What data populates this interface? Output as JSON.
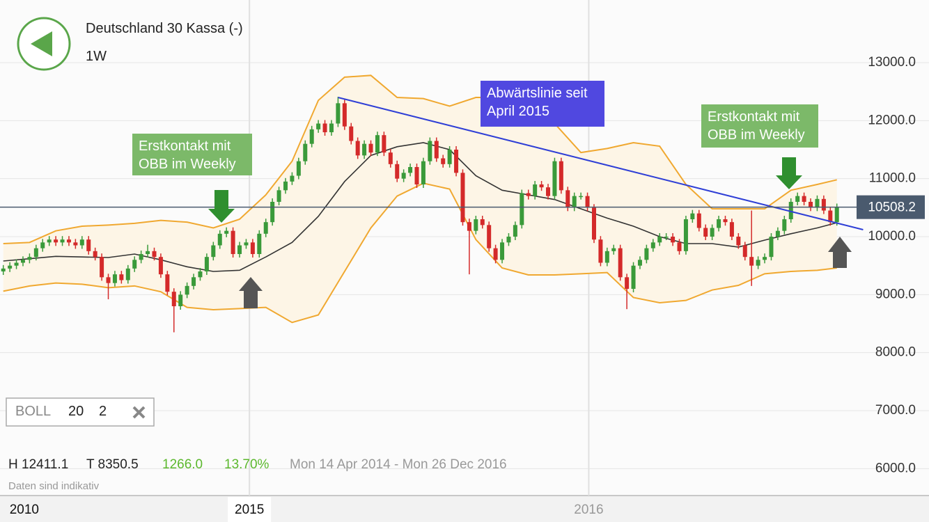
{
  "header": {
    "title": "Deutschland 30 Kassa (-)",
    "interval": "1W"
  },
  "indicator": {
    "name": "BOLL",
    "period": 20,
    "deviation": 2
  },
  "stats": {
    "high": "H 12411.1",
    "low": "T 8350.5",
    "change": "1266.0",
    "change_pct": "13.70%",
    "range": "Mon 14 Apr 2014 - Mon 26 Dec 2016",
    "note": "Daten sind indikativ"
  },
  "chart_data": {
    "type": "candlestick",
    "categories": [
      null,
      null,
      null,
      null,
      null,
      null,
      null,
      null,
      null,
      null,
      null,
      null,
      null,
      null,
      null,
      null,
      null,
      null,
      null,
      null,
      null,
      null,
      null,
      null,
      null,
      null,
      null,
      null,
      null,
      null,
      null,
      null,
      null,
      null,
      null,
      null,
      null,
      null,
      null,
      null,
      null,
      null,
      null,
      null,
      null,
      null,
      null,
      null,
      null,
      null,
      null,
      null,
      null,
      null,
      null,
      null,
      null,
      null,
      null,
      null,
      null,
      null,
      null,
      null,
      null,
      null,
      null,
      null,
      null,
      null,
      null,
      null,
      null,
      null,
      null,
      null,
      null,
      null,
      null,
      null,
      null,
      null,
      null,
      null,
      null,
      null,
      null,
      null,
      null,
      null,
      null,
      null,
      null,
      null,
      null,
      null,
      null,
      null,
      null,
      null,
      null,
      null,
      null,
      null,
      null,
      null,
      null,
      null,
      null,
      null,
      null,
      null,
      null,
      null,
      null,
      null,
      null,
      null,
      null,
      null,
      null,
      null,
      null,
      null,
      null,
      null,
      null,
      null
    ],
    "open": [
      9400,
      9450,
      9500,
      9550,
      9600,
      9650,
      9800,
      9900,
      9950,
      9900,
      9950,
      9900,
      9850,
      9950,
      9750,
      9650,
      9300,
      9200,
      9350,
      9250,
      9450,
      9600,
      9700,
      9750,
      9650,
      9350,
      9050,
      8800,
      9000,
      9150,
      9300,
      9400,
      9650,
      9850,
      10050,
      10100,
      9700,
      9850,
      9900,
      9700,
      10050,
      10250,
      10600,
      10800,
      10950,
      11050,
      11300,
      11600,
      11850,
      11950,
      11800,
      11950,
      12300,
      11900,
      11650,
      11400,
      11600,
      11450,
      11750,
      11450,
      11250,
      11000,
      11100,
      11200,
      10900,
      11300,
      11650,
      11350,
      11250,
      11500,
      11100,
      10250,
      10100,
      10300,
      10200,
      9800,
      9600,
      9900,
      10000,
      10200,
      10750,
      10700,
      10900,
      10850,
      10700,
      11300,
      10800,
      10500,
      10700,
      10700,
      10500,
      9950,
      9550,
      9750,
      9800,
      9300,
      9100,
      9500,
      9600,
      9800,
      9900,
      10000,
      10000,
      9900,
      9750,
      10300,
      10400,
      10150,
      10000,
      10150,
      10300,
      10250,
      10000,
      9850,
      9650,
      9500,
      9600,
      9650,
      10000,
      10100,
      10300,
      10600,
      10700,
      10600,
      10500,
      10650,
      10450,
      10250
    ],
    "high": [
      9510,
      9560,
      9610,
      9660,
      9710,
      9860,
      9960,
      10010,
      10010,
      10010,
      10010,
      9960,
      10010,
      10010,
      9810,
      9710,
      9360,
      9410,
      9410,
      9510,
      9660,
      9760,
      9860,
      9810,
      9710,
      9410,
      9110,
      9060,
      9210,
      9360,
      9460,
      9710,
      9910,
      10110,
      10160,
      10160,
      9910,
      9960,
      9960,
      10110,
      10310,
      10660,
      10860,
      11010,
      11110,
      11360,
      11660,
      11910,
      12010,
      12010,
      12010,
      12411.1,
      12360,
      11960,
      11710,
      11660,
      11660,
      11810,
      11810,
      11510,
      11310,
      11160,
      11260,
      11260,
      11360,
      11710,
      11710,
      11410,
      11560,
      11560,
      11160,
      10310,
      10360,
      10360,
      10260,
      9860,
      9960,
      10060,
      10260,
      10810,
      10810,
      10960,
      10960,
      10910,
      11360,
      11360,
      10860,
      10760,
      10760,
      10760,
      10560,
      10010,
      9810,
      9860,
      9860,
      9360,
      9560,
      9660,
      9860,
      9960,
      10060,
      10060,
      10060,
      9960,
      10360,
      10460,
      10460,
      10210,
      10210,
      10360,
      10360,
      10310,
      10060,
      9910,
      10450,
      9660,
      9710,
      10060,
      10160,
      10360,
      10660,
      10760,
      10760,
      10660,
      10710,
      10710,
      10510,
      10570
    ],
    "low": [
      9340,
      9390,
      9440,
      9490,
      9540,
      9590,
      9740,
      9840,
      9840,
      9840,
      9840,
      9790,
      9790,
      9690,
      9590,
      9240,
      8920,
      9140,
      9190,
      9190,
      9390,
      9540,
      9640,
      9590,
      9290,
      8990,
      8350.5,
      8740,
      8940,
      9090,
      9240,
      9340,
      9590,
      9790,
      9990,
      9640,
      9640,
      9790,
      9640,
      9640,
      9990,
      10190,
      10540,
      10740,
      10890,
      10990,
      11240,
      11540,
      11790,
      11740,
      11740,
      11890,
      11840,
      11590,
      11340,
      11340,
      11390,
      11390,
      11390,
      11190,
      10940,
      10940,
      11040,
      10840,
      10840,
      11240,
      11290,
      11190,
      11190,
      11040,
      10190,
      9350,
      10040,
      10140,
      9740,
      9540,
      9540,
      9840,
      9940,
      10140,
      10640,
      10640,
      10790,
      10640,
      10640,
      10740,
      10440,
      10440,
      10640,
      10440,
      9890,
      9490,
      9490,
      9690,
      9240,
      8750,
      9040,
      9440,
      9540,
      9740,
      9840,
      9940,
      9840,
      9690,
      9690,
      10240,
      10090,
      9940,
      9940,
      10090,
      10190,
      9940,
      9790,
      9590,
      9150,
      9440,
      9540,
      9590,
      9940,
      10040,
      10240,
      10540,
      10540,
      10440,
      10440,
      10390,
      10190,
      10190
    ],
    "close": [
      9450,
      9500,
      9550,
      9600,
      9650,
      9800,
      9900,
      9950,
      9900,
      9950,
      9900,
      9850,
      9950,
      9750,
      9650,
      9300,
      9200,
      9350,
      9250,
      9450,
      9600,
      9700,
      9750,
      9650,
      9350,
      9050,
      8800,
      9000,
      9150,
      9300,
      9400,
      9650,
      9850,
      10050,
      10100,
      9700,
      9850,
      9900,
      9700,
      10050,
      10250,
      10600,
      10800,
      10950,
      11050,
      11300,
      11600,
      11850,
      11950,
      11800,
      11950,
      12300,
      11900,
      11650,
      11400,
      11600,
      11450,
      11750,
      11450,
      11250,
      11000,
      11100,
      11200,
      10900,
      11300,
      11650,
      11350,
      11250,
      11500,
      11100,
      10250,
      10100,
      10300,
      10200,
      9800,
      9600,
      9900,
      10000,
      10200,
      10750,
      10700,
      10900,
      10850,
      10700,
      11300,
      10800,
      10500,
      10700,
      10700,
      10500,
      9950,
      9550,
      9750,
      9800,
      9300,
      9100,
      9500,
      9600,
      9800,
      9900,
      10000,
      10000,
      9900,
      9750,
      10300,
      10400,
      10150,
      10000,
      10150,
      10300,
      10250,
      10000,
      9850,
      9650,
      9500,
      9600,
      9650,
      10000,
      10100,
      10300,
      10600,
      10700,
      10600,
      10500,
      10650,
      10450,
      10250,
      10508.2
    ],
    "up_color": "#3a9a3a",
    "down_color": "#d42a2a",
    "bands": {
      "x": [
        0,
        4,
        8,
        12,
        16,
        20,
        24,
        28,
        32,
        36,
        40,
        44,
        48,
        52,
        56,
        60,
        64,
        68,
        72,
        76,
        80,
        84,
        88,
        92,
        96,
        100,
        104,
        108,
        112,
        116,
        120,
        124,
        127
      ],
      "upper": [
        9880,
        9900,
        10100,
        10180,
        10200,
        10230,
        10280,
        10250,
        10150,
        10300,
        10720,
        11300,
        12350,
        12750,
        12780,
        12400,
        12380,
        12250,
        12400,
        12400,
        12380,
        11950,
        11450,
        11520,
        11620,
        11560,
        10900,
        10480,
        10480,
        10480,
        10800,
        10900,
        10980
      ],
      "middle": [
        9580,
        9620,
        9660,
        9650,
        9640,
        9700,
        9600,
        9480,
        9400,
        9420,
        9650,
        9900,
        10350,
        10950,
        11400,
        11550,
        11620,
        11500,
        11050,
        10800,
        10720,
        10640,
        10480,
        10320,
        10180,
        10000,
        9880,
        9880,
        9820,
        9940,
        10050,
        10150,
        10240
      ],
      "lower": [
        9060,
        9150,
        9200,
        9180,
        9120,
        9150,
        9050,
        8780,
        8740,
        8760,
        8780,
        8520,
        8650,
        9400,
        10150,
        10700,
        10920,
        10820,
        9950,
        9460,
        9340,
        9340,
        9360,
        9380,
        8950,
        8860,
        8900,
        9080,
        9160,
        9360,
        9400,
        9420,
        9460
      ],
      "color": "#f0a830",
      "middle_color": "#333333",
      "fill": "#fdf5e6"
    },
    "trendline": {
      "x": [
        51,
        131
      ],
      "values": [
        12400,
        10120
      ],
      "color": "#2f3fd6"
    },
    "last": {
      "value": 10508.2,
      "color": "#4a5a6e"
    },
    "annotations": [
      "Erstkontakt mit OBB im Weekly",
      "Abwärtslinie seit April 2015",
      "Erstkontakt mit OBB im Weekly"
    ],
    "xlim": [
      -0.5,
      130
    ],
    "ylim": [
      5536,
      14080
    ],
    "xticks": [
      {
        "value": 3.2,
        "label": "2010"
      },
      {
        "value": 37.5,
        "label": "2015"
      },
      {
        "value": 89.2,
        "label": "2016"
      }
    ],
    "yticks": [
      {
        "value": 6000,
        "label": "6000.0"
      },
      {
        "value": 7000,
        "label": "7000.0"
      },
      {
        "value": 8000,
        "label": "8000.0"
      },
      {
        "value": 9000,
        "label": "9000.0"
      },
      {
        "value": 10000,
        "label": "10000.0"
      },
      {
        "value": 11000,
        "label": "11000.0"
      },
      {
        "value": 12000,
        "label": "12000.0"
      },
      {
        "value": 13000,
        "label": "13000.0"
      }
    ],
    "grid": true
  }
}
